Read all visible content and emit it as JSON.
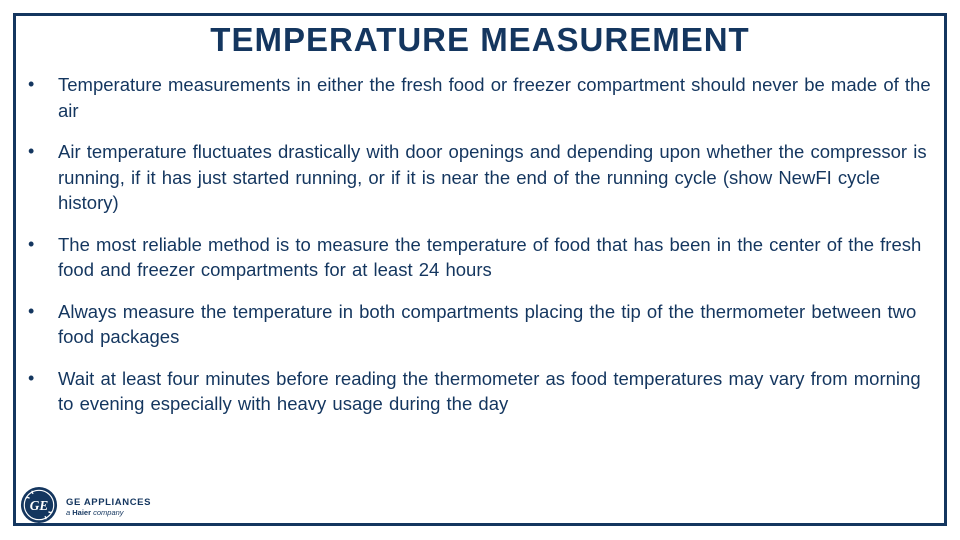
{
  "slide": {
    "title": "TEMPERATURE MEASUREMENT",
    "bullet_symbol": "•",
    "bullets": [
      "Temperature  measurements  in either the fresh food or freezer compartment  should never be made of the air",
      "Air temperature fluctuates drastically with door openings and depending  upon whether the compressor is running,  if it has just started running,  or if it is near the end of the running cycle (show NewFI cycle history)",
      "The most reliable method  is to measure the temperature  of food that has been in the center of the fresh food and freezer compartments  for at least 24 hours",
      "Always measure the temperature  in both compartments  placing  the tip of the thermometer between two food packages",
      "Wait at least four minutes before reading the thermometer  as food temperatures may vary from morning  to evening especially with heavy usage during the day"
    ]
  },
  "branding": {
    "logo_icon": "ge-monogram-icon",
    "logo_text": "GE",
    "company_name": "GE APPLIANCES",
    "tagline_prefix": "a",
    "tagline_brand": "Haier",
    "tagline_suffix": "company"
  },
  "colors": {
    "primary": "#14365f",
    "background": "#ffffff"
  }
}
